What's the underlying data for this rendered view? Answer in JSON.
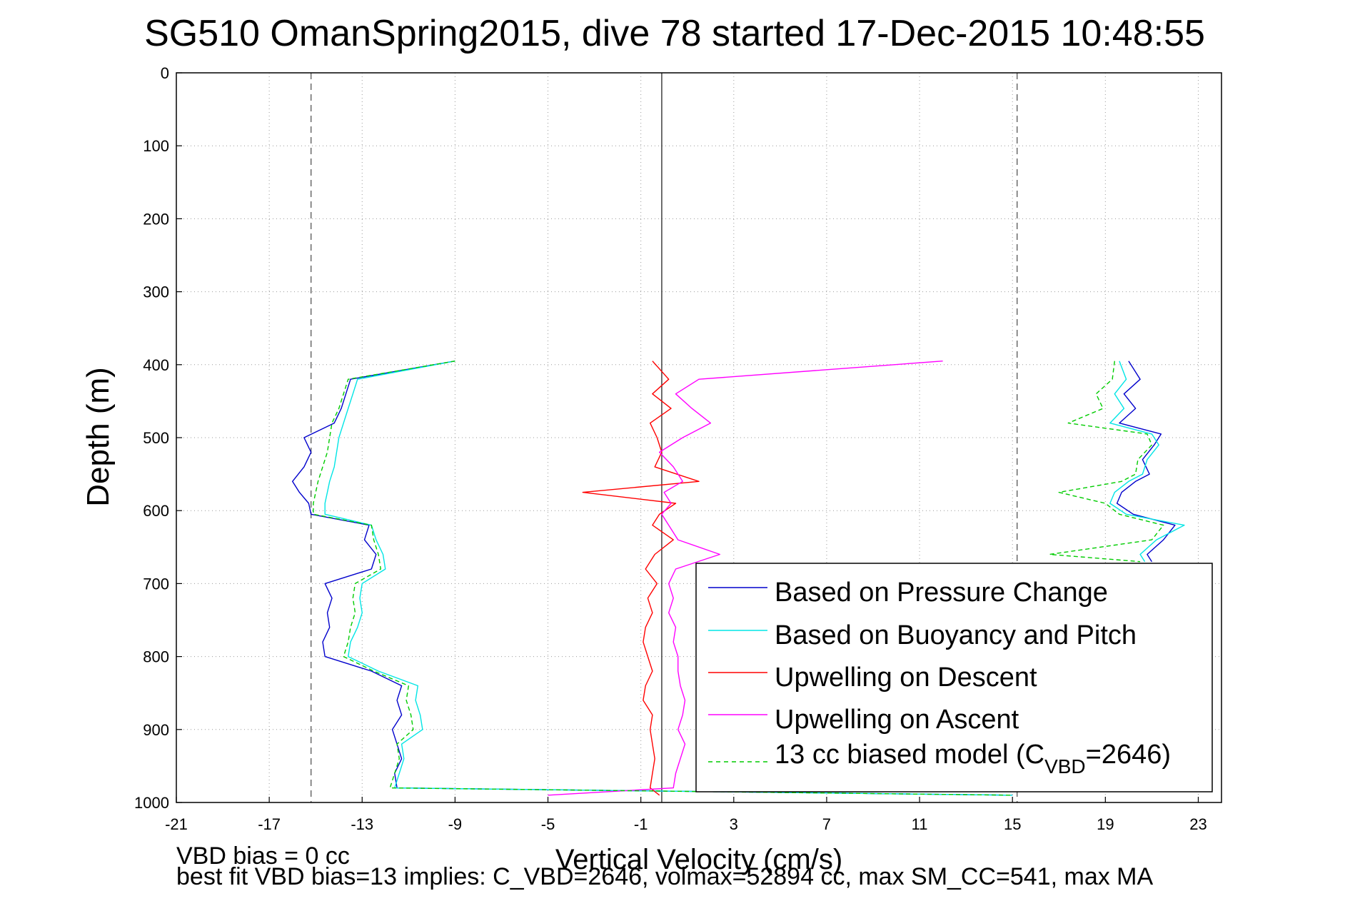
{
  "chart_data": {
    "type": "line",
    "title": "SG510 OmanSpring2015, dive 78 started 17-Dec-2015 10:48:55",
    "xlabel": "Vertical Velocity (cm/s)",
    "ylabel": "Depth (m)",
    "xlim": [
      -21,
      24
    ],
    "ylim": [
      0,
      1000
    ],
    "y_reversed": true,
    "grid": true,
    "x_ticks": [
      -21,
      -17,
      -13,
      -9,
      -5,
      -1,
      3,
      7,
      11,
      15,
      19,
      23
    ],
    "y_ticks": [
      0,
      100,
      200,
      300,
      400,
      500,
      600,
      700,
      800,
      900,
      1000
    ],
    "reference_lines": {
      "dashed_x": [
        -15.2,
        15.2
      ],
      "solid_x": [
        -0.1
      ]
    },
    "legend_position": "bottom-right",
    "series": [
      {
        "name": "Based on Pressure Change",
        "color": "#0000cc",
        "style": "solid",
        "y": [
          395,
          420,
          440,
          460,
          480,
          500,
          520,
          540,
          560,
          575,
          590,
          605,
          620,
          640,
          660,
          680,
          700,
          720,
          740,
          760,
          780,
          800,
          820,
          840,
          860,
          880,
          900,
          920,
          940,
          960,
          980,
          990
        ],
        "x": [
          -9,
          -13.5,
          -13.7,
          -13.9,
          -14.2,
          -15.5,
          -15.2,
          -15.5,
          -16,
          -15.7,
          -15.3,
          -15.2,
          -12.7,
          -12.9,
          -12.4,
          -12.6,
          -14.6,
          -14.3,
          -14.5,
          -14.4,
          -14.7,
          -14.6,
          -12.6,
          -11.3,
          -11.5,
          -11.3,
          -11.7,
          -11.5,
          -11.3,
          -11.6,
          -11.5,
          15
        ]
      },
      {
        "name": "Based on Buoyancy and Pitch",
        "color": "#00e5e5",
        "style": "solid",
        "y": [
          395,
          420,
          440,
          460,
          480,
          500,
          520,
          540,
          560,
          575,
          590,
          605,
          620,
          640,
          660,
          680,
          700,
          720,
          740,
          760,
          780,
          800,
          820,
          840,
          860,
          880,
          900,
          920,
          940,
          960,
          980,
          990
        ],
        "x": [
          -9,
          -13.2,
          -13.4,
          -13.6,
          -13.8,
          -14.0,
          -14.1,
          -14.2,
          -14.4,
          -14.5,
          -14.6,
          -14.6,
          -12.6,
          -12.4,
          -12.1,
          -12.0,
          -13.0,
          -13.1,
          -13.0,
          -13.2,
          -13.5,
          -13.6,
          -12.3,
          -10.6,
          -10.7,
          -10.5,
          -10.4,
          -11.3,
          -11.2,
          -11.4,
          -11.6,
          15
        ]
      },
      {
        "name": "Upwelling on Descent",
        "color": "#ff0000",
        "style": "solid",
        "y": [
          395,
          420,
          440,
          460,
          480,
          500,
          520,
          540,
          560,
          575,
          590,
          605,
          620,
          640,
          660,
          680,
          700,
          720,
          740,
          760,
          780,
          800,
          820,
          840,
          860,
          880,
          900,
          920,
          940,
          960,
          980,
          990
        ],
        "x": [
          -0.5,
          0.2,
          -0.5,
          0.3,
          -0.6,
          -0.3,
          -0.1,
          -0.4,
          1.5,
          -3.5,
          0.5,
          -0.2,
          -0.5,
          0.4,
          -0.4,
          -0.8,
          -0.3,
          -0.7,
          -0.5,
          -0.8,
          -0.9,
          -0.7,
          -0.5,
          -0.8,
          -0.9,
          -0.5,
          -0.6,
          -0.5,
          -0.4,
          -0.5,
          -0.6,
          -0.2
        ]
      },
      {
        "name": "Upwelling on Ascent",
        "color": "#ff00ff",
        "style": "solid",
        "y": [
          395,
          420,
          440,
          460,
          480,
          500,
          520,
          540,
          560,
          575,
          590,
          605,
          620,
          640,
          660,
          680,
          700,
          720,
          740,
          760,
          780,
          800,
          820,
          840,
          860,
          880,
          900,
          920,
          940,
          960,
          980,
          990
        ],
        "x": [
          12,
          1.5,
          0.5,
          1.2,
          2.0,
          0.8,
          -0.2,
          0.4,
          0.8,
          0.0,
          0.3,
          -0.1,
          0.2,
          0.6,
          2.4,
          0.5,
          0.2,
          0.4,
          0.2,
          0.5,
          0.4,
          0.6,
          0.6,
          0.7,
          0.9,
          0.8,
          0.6,
          0.9,
          0.7,
          0.5,
          0.4,
          -5
        ]
      },
      {
        "name": "13 cc biased model (C_VBD=2646)",
        "color": "#00cc00",
        "style": "dashed",
        "y": [
          395,
          420,
          440,
          460,
          480,
          500,
          520,
          540,
          560,
          575,
          590,
          605,
          620,
          640,
          660,
          680,
          700,
          720,
          740,
          760,
          780,
          800,
          820,
          840,
          860,
          880,
          900,
          920,
          940,
          960,
          980,
          990
        ],
        "x": [
          -9,
          -13.6,
          -13.8,
          -14.0,
          -14.3,
          -14.4,
          -14.5,
          -14.7,
          -14.9,
          -15.0,
          -15.1,
          -15.1,
          -12.6,
          -12.5,
          -12.3,
          -12.2,
          -13.3,
          -13.4,
          -13.3,
          -13.5,
          -13.6,
          -13.8,
          -12.5,
          -11.0,
          -11.1,
          -10.9,
          -10.8,
          -11.5,
          -11.4,
          -11.6,
          -11.8,
          15
        ]
      },
      {
        "name": "",
        "color": "#0000cc",
        "style": "solid",
        "y": [
          395,
          420,
          440,
          460,
          480,
          495,
          510,
          530,
          550,
          560,
          575,
          590,
          605,
          620,
          640,
          660,
          670
        ],
        "x": [
          20,
          20.5,
          19.8,
          20.3,
          19.6,
          21.4,
          21.1,
          20.6,
          20.9,
          20.3,
          19.7,
          19.5,
          20.2,
          22.0,
          21.5,
          20.8,
          21.0
        ]
      },
      {
        "name": "",
        "color": "#00e5e5",
        "style": "solid",
        "y": [
          395,
          420,
          440,
          460,
          480,
          495,
          510,
          530,
          550,
          560,
          575,
          590,
          605,
          620,
          640,
          660,
          670
        ],
        "x": [
          19.6,
          19.9,
          19.4,
          19.8,
          19.2,
          21.0,
          21.3,
          20.8,
          20.6,
          20.0,
          19.4,
          19.2,
          19.9,
          22.4,
          21.2,
          20.5,
          20.7
        ]
      },
      {
        "name": "",
        "color": "#00cc00",
        "style": "dashed",
        "y": [
          395,
          420,
          440,
          460,
          480,
          495,
          510,
          530,
          550,
          560,
          575,
          590,
          605,
          620,
          640,
          660,
          670
        ],
        "x": [
          19.4,
          19.3,
          18.6,
          18.9,
          17.4,
          20.8,
          21.0,
          20.4,
          20.3,
          19.7,
          17.0,
          19.0,
          19.6,
          21.5,
          21.0,
          16.6,
          20.5
        ]
      }
    ]
  },
  "labels": {
    "title": "SG510 OmanSpring2015, dive 78 started 17-Dec-2015 10:48:55",
    "xlabel": "Vertical Velocity (cm/s)",
    "ylabel": "Depth (m)",
    "legend": [
      "Based on Pressure Change",
      "Based on Buoyancy and Pitch",
      "Upwelling on Descent",
      "Upwelling on Ascent",
      "13 cc biased model (C"
    ],
    "legend_subscript": "VBD",
    "legend_suffix": "=2646)",
    "footnote_1": "VBD bias = 0 cc",
    "footnote_2": "best fit VBD bias=13 implies: C_VBD=2646, volmax=52894 cc, max SM_CC=541, max MA"
  }
}
